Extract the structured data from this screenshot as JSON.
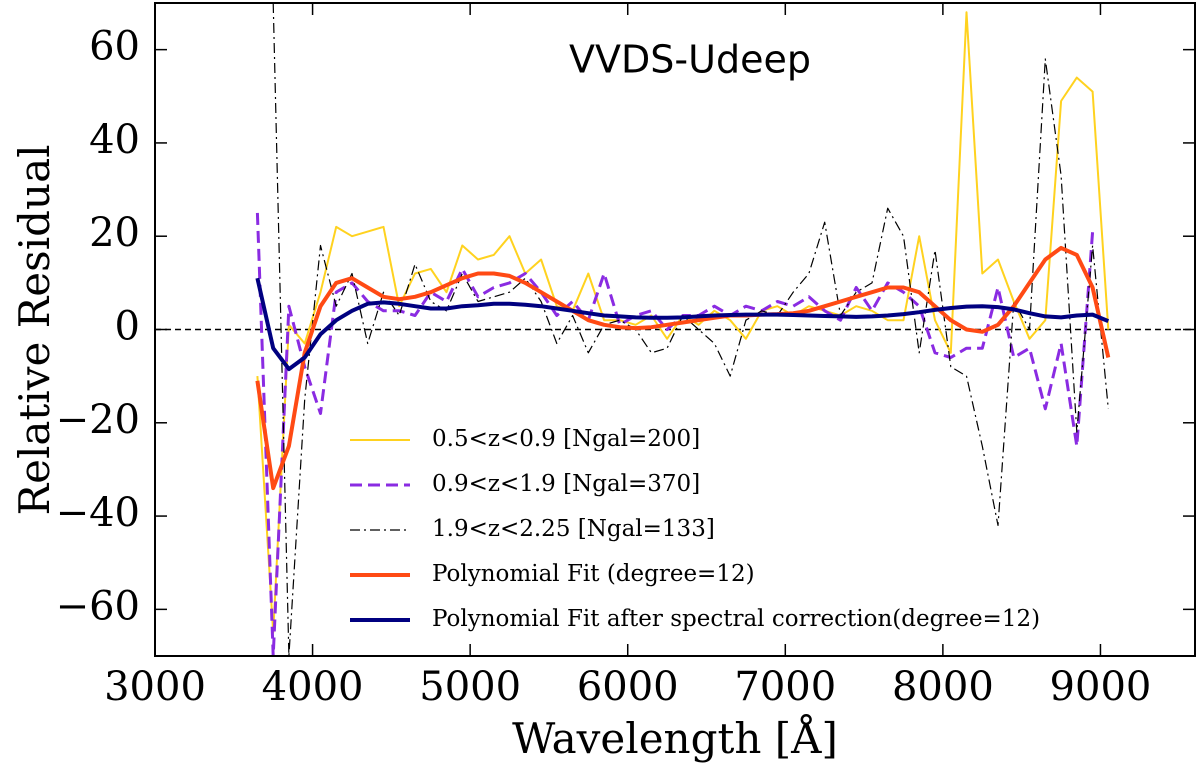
{
  "chart_data": {
    "type": "line",
    "title": "VVDS-Udeep",
    "xlabel": "Wavelength [Å]",
    "ylabel": "Relative Residual",
    "xlim": [
      3000,
      9600
    ],
    "ylim": [
      -70,
      70
    ],
    "xticks": [
      3000,
      4000,
      5000,
      6000,
      7000,
      8000,
      9000
    ],
    "yticks": [
      {
        "value": -60,
        "label": "−60"
      },
      {
        "value": -40,
        "label": "−40"
      },
      {
        "value": -20,
        "label": "−20"
      },
      0,
      20,
      40,
      60
    ],
    "hline": 0,
    "legend": "lower center",
    "x": [
      3650,
      3750,
      3850,
      3950,
      4050,
      4150,
      4250,
      4350,
      4450,
      4550,
      4650,
      4750,
      4850,
      4950,
      5050,
      5150,
      5250,
      5350,
      5450,
      5550,
      5650,
      5750,
      5850,
      5950,
      6050,
      6150,
      6250,
      6350,
      6450,
      6550,
      6650,
      6750,
      6850,
      6950,
      7050,
      7150,
      7250,
      7350,
      7450,
      7550,
      7650,
      7750,
      7850,
      7950,
      8050,
      8150,
      8250,
      8350,
      8450,
      8550,
      8650,
      8750,
      8850,
      8950,
      9050
    ],
    "series": [
      {
        "name": "0.5<z<0.9 [Ngal=200]",
        "color": "#ffd21f",
        "linestyle": "solid",
        "linewidth": 2,
        "values": [
          -10,
          -65,
          1,
          -3,
          8,
          22,
          20,
          21,
          22,
          5,
          12,
          13,
          8,
          18,
          15,
          16,
          20,
          12,
          15,
          5,
          4,
          12,
          2,
          2,
          1,
          3,
          -2,
          3,
          1,
          4,
          2,
          -2,
          4,
          5,
          3,
          5,
          4,
          3,
          5,
          4,
          2,
          2,
          20,
          2,
          -5,
          68,
          12,
          15,
          6,
          -2,
          2,
          49,
          54,
          51,
          0
        ]
      },
      {
        "name": "0.9<z<1.9 [Ngal=370]",
        "color": "#8a2be2",
        "linestyle": "dashed",
        "linewidth": 3,
        "values": [
          25,
          -70,
          5,
          -8,
          -18,
          8,
          10,
          6,
          4,
          4,
          3,
          8,
          6,
          13,
          7,
          9,
          10,
          12,
          8,
          3,
          6,
          2,
          12,
          1,
          3,
          4,
          0,
          3,
          3,
          5,
          3,
          5,
          4,
          6,
          5,
          7,
          4,
          2,
          9,
          4,
          10,
          8,
          5,
          -5,
          -6,
          -4,
          -4,
          9,
          -6,
          -4,
          -17,
          -3,
          -25,
          21,
          null
        ]
      },
      {
        "name": "1.9<z<2.25 [Ngal=133]",
        "color": "#000000",
        "linestyle": "dashdot",
        "linewidth": 1.2,
        "values": [
          null,
          70,
          -70,
          -15,
          18,
          5,
          12,
          -3,
          8,
          3,
          14,
          6,
          4,
          12,
          6,
          7,
          8,
          11,
          6,
          -3,
          3,
          -5,
          1,
          2,
          0,
          -5,
          -4,
          3,
          0,
          -3,
          -10,
          2,
          4,
          3,
          8,
          12,
          23,
          3,
          8,
          10,
          26,
          20,
          -5,
          17,
          -8,
          -10,
          -25,
          -42,
          6,
          0,
          58,
          33,
          -22,
          18,
          -17
        ]
      },
      {
        "name": "Polynomial Fit (degree=12)",
        "color": "#ff4a14",
        "linestyle": "solid",
        "linewidth": 4,
        "values": [
          -11,
          -34,
          -25,
          -5,
          5,
          10,
          11,
          9,
          7,
          6.5,
          7,
          8,
          9.5,
          11,
          12,
          12,
          11.5,
          10,
          8,
          6,
          4,
          2,
          1,
          0.5,
          0.3,
          0.5,
          1,
          1.5,
          2,
          2.5,
          3,
          3,
          3.2,
          3.3,
          3.5,
          4,
          5,
          6,
          7,
          8,
          9,
          9,
          8,
          5,
          2,
          0,
          -0.5,
          1,
          5,
          10,
          15,
          17.5,
          16,
          9,
          -6
        ]
      },
      {
        "name": "Polynomial Fit after spectral correction(degree=12)",
        "color": "#000080",
        "linestyle": "solid",
        "linewidth": 4,
        "values": [
          11,
          -4,
          -8.5,
          -6,
          -1,
          2,
          4,
          5.5,
          5.8,
          5.5,
          5,
          4.5,
          4.5,
          5,
          5.2,
          5.5,
          5.5,
          5.3,
          5,
          4.5,
          4,
          3.5,
          3,
          2.8,
          2.6,
          2.5,
          2.5,
          2.6,
          2.8,
          3,
          3.1,
          3.2,
          3.2,
          3.2,
          3.1,
          3,
          2.9,
          2.8,
          2.7,
          2.8,
          3,
          3.3,
          3.7,
          4.2,
          4.6,
          4.9,
          5,
          4.8,
          4.3,
          3.5,
          2.8,
          2.6,
          3,
          3.2,
          1.8
        ]
      }
    ]
  }
}
